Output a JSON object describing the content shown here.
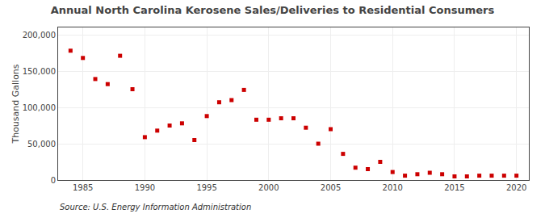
{
  "chart_data": {
    "type": "scatter",
    "title": "Annual North Carolina Kerosene Sales/Deliveries to Residential Consumers",
    "ylabel": "Thousand Gallons",
    "annotations": [
      "Source: U.S. Energy Information Administration"
    ],
    "x": [
      1984,
      1985,
      1986,
      1987,
      1988,
      1989,
      1990,
      1991,
      1992,
      1993,
      1994,
      1995,
      1996,
      1997,
      1998,
      1999,
      2000,
      2001,
      2002,
      2003,
      2004,
      2005,
      2006,
      2007,
      2008,
      2009,
      2010,
      2011,
      2012,
      2013,
      2014,
      2015,
      2016,
      2017,
      2018,
      2019,
      2020
    ],
    "values": [
      178000,
      168000,
      139000,
      132000,
      171000,
      125000,
      59000,
      68000,
      75000,
      78000,
      55000,
      88000,
      107000,
      110000,
      124000,
      83000,
      83000,
      85000,
      85000,
      72000,
      50000,
      70000,
      36000,
      17000,
      15000,
      25000,
      11000,
      6000,
      8000,
      10000,
      8000,
      5000,
      5000,
      6000,
      6000,
      6000,
      6000
    ],
    "color": "#cc0000",
    "marker": "square",
    "xlim": [
      1983,
      2021
    ],
    "xticks": [
      1985,
      1990,
      1995,
      2000,
      2005,
      2010,
      2015,
      2020
    ],
    "ylim": [
      0,
      210000
    ],
    "yticks": [
      0,
      {
        "value": 50000,
        "label": "50,000"
      },
      {
        "value": 100000,
        "label": "100,000"
      },
      {
        "value": 150000,
        "label": "150,000"
      },
      {
        "value": 200000,
        "label": "200,000"
      }
    ],
    "grid": true
  }
}
